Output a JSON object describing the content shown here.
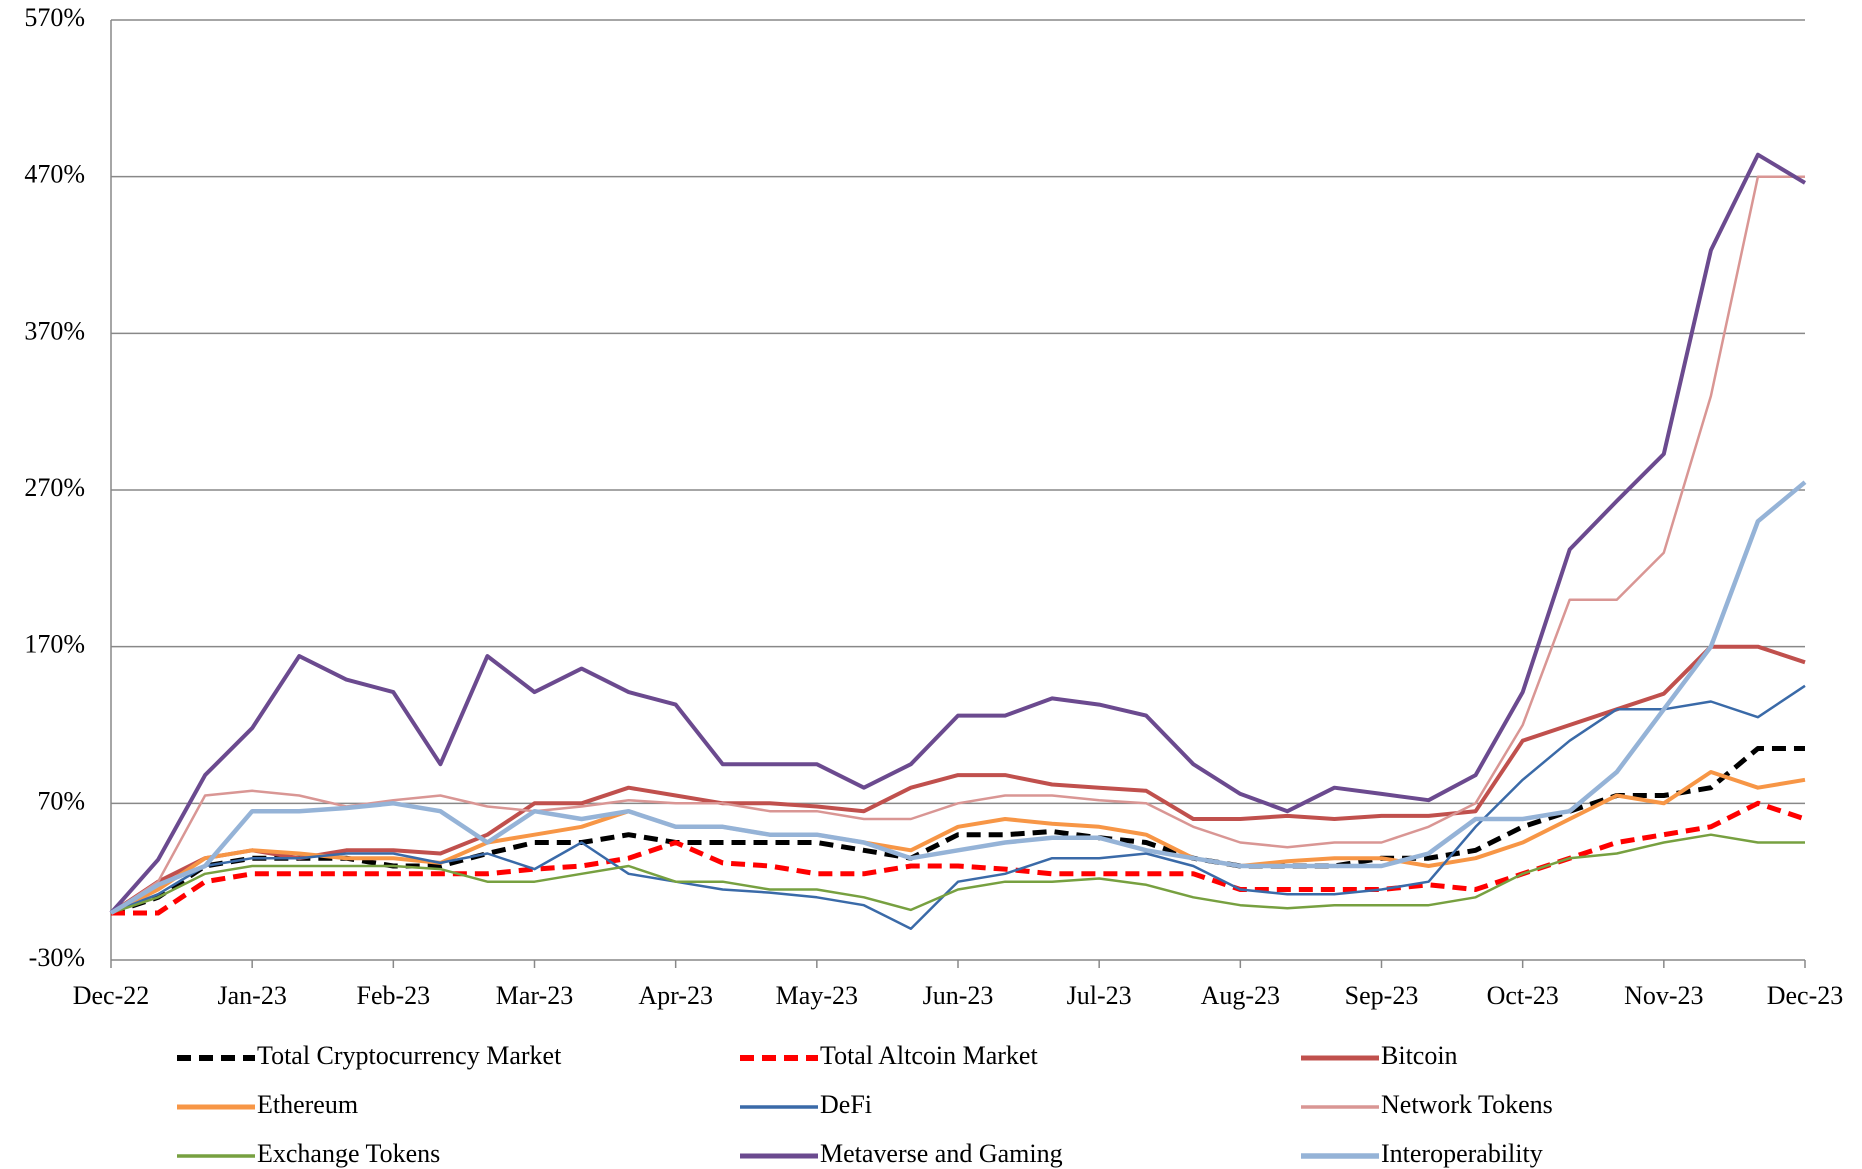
{
  "chart_data": {
    "type": "line",
    "categories": [
      "Dec-22",
      null,
      null,
      "Jan-23",
      null,
      null,
      "Feb-23",
      null,
      null,
      "Mar-23",
      null,
      null,
      "Apr-23",
      null,
      null,
      "May-23",
      null,
      null,
      "Jun-23",
      null,
      null,
      "Jul-23",
      null,
      null,
      "Aug-23",
      null,
      null,
      "Sep-23",
      null,
      null,
      "Oct-23",
      null,
      null,
      "Nov-23",
      null,
      null,
      "Dec-23"
    ],
    "ylim": [
      -30,
      570
    ],
    "yticks": [
      {
        "value": -30,
        "label": "-30%"
      },
      {
        "value": 70,
        "label": "70%"
      },
      {
        "value": 170,
        "label": "170%"
      },
      {
        "value": 270,
        "label": "270%"
      },
      {
        "value": 370,
        "label": "370%"
      },
      {
        "value": 470,
        "label": "470%"
      },
      {
        "value": 570,
        "label": "570%"
      }
    ],
    "grid": true,
    "series": [
      {
        "name": "Total Cryptocurrency Market",
        "color": "#000000",
        "dashed": true,
        "line_width": 5,
        "values": [
          0,
          10,
          30,
          35,
          35,
          35,
          30,
          30,
          38,
          45,
          45,
          50,
          45,
          45,
          45,
          45,
          40,
          35,
          50,
          50,
          52,
          48,
          45,
          35,
          30,
          30,
          30,
          35,
          35,
          40,
          55,
          65,
          75,
          75,
          80,
          105,
          105
        ]
      },
      {
        "name": "Total Altcoin Market",
        "color": "#ff0000",
        "dashed": true,
        "line_width": 5,
        "values": [
          0,
          0,
          20,
          25,
          25,
          25,
          25,
          25,
          25,
          28,
          30,
          35,
          45,
          32,
          30,
          25,
          25,
          30,
          30,
          28,
          25,
          25,
          25,
          25,
          15,
          15,
          15,
          15,
          18,
          15,
          25,
          35,
          45,
          50,
          55,
          70,
          60
        ]
      },
      {
        "name": "Bitcoin",
        "color": "#c0504d",
        "dashed": false,
        "line_width": 4,
        "values": [
          0,
          20,
          35,
          40,
          35,
          40,
          40,
          38,
          50,
          70,
          70,
          80,
          75,
          70,
          70,
          68,
          65,
          80,
          88,
          88,
          82,
          80,
          78,
          60,
          60,
          62,
          60,
          62,
          62,
          65,
          110,
          120,
          130,
          140,
          170,
          170,
          160
        ]
      },
      {
        "name": "Ethereum",
        "color": "#f79646",
        "dashed": false,
        "line_width": 4,
        "values": [
          0,
          15,
          35,
          40,
          38,
          35,
          35,
          32,
          45,
          50,
          55,
          65,
          55,
          55,
          50,
          50,
          45,
          40,
          55,
          60,
          57,
          55,
          50,
          35,
          30,
          33,
          35,
          35,
          30,
          35,
          45,
          60,
          75,
          70,
          90,
          80,
          85
        ]
      },
      {
        "name": "DeFi",
        "color": "#3a6aa8",
        "dashed": false,
        "line_width": 2.5,
        "values": [
          0,
          12,
          30,
          35,
          35,
          38,
          38,
          32,
          38,
          28,
          45,
          25,
          20,
          15,
          13,
          10,
          5,
          -10,
          20,
          25,
          35,
          35,
          38,
          30,
          15,
          12,
          12,
          15,
          20,
          55,
          85,
          110,
          130,
          130,
          135,
          125,
          145
        ]
      },
      {
        "name": "Network Tokens",
        "color": "#d99694",
        "dashed": false,
        "line_width": 2.5,
        "values": [
          0,
          20,
          75,
          78,
          75,
          68,
          72,
          75,
          68,
          65,
          68,
          72,
          70,
          70,
          65,
          65,
          60,
          60,
          70,
          75,
          75,
          72,
          70,
          55,
          45,
          42,
          45,
          45,
          55,
          70,
          120,
          200,
          200,
          230,
          330,
          470,
          470
        ]
      },
      {
        "name": "Exchange Tokens",
        "color": "#77a040",
        "dashed": false,
        "line_width": 2.5,
        "values": [
          0,
          10,
          25,
          30,
          30,
          30,
          30,
          28,
          20,
          20,
          25,
          30,
          20,
          20,
          15,
          15,
          10,
          2,
          15,
          20,
          20,
          22,
          18,
          10,
          5,
          3,
          5,
          5,
          5,
          10,
          25,
          35,
          38,
          45,
          50,
          45,
          45
        ]
      },
      {
        "name": "Metaverse and Gaming",
        "color": "#6b4a8f",
        "dashed": false,
        "line_width": 4,
        "values": [
          0,
          34,
          88,
          118,
          164,
          149,
          141,
          95,
          164,
          141,
          156,
          141,
          133,
          95,
          95,
          95,
          80,
          95,
          126,
          126,
          137,
          133,
          126,
          95,
          76,
          65,
          80,
          76,
          72,
          88,
          141,
          232,
          263,
          293,
          423,
          484,
          466
        ]
      },
      {
        "name": "Interoperability",
        "color": "#95b3d7",
        "dashed": false,
        "line_width": 4.5,
        "values": [
          0,
          18,
          30,
          65,
          65,
          67,
          70,
          65,
          45,
          65,
          60,
          65,
          55,
          55,
          50,
          50,
          45,
          35,
          40,
          45,
          48,
          48,
          40,
          35,
          30,
          30,
          30,
          30,
          38,
          60,
          60,
          65,
          90,
          130,
          170,
          250,
          275
        ]
      }
    ]
  }
}
